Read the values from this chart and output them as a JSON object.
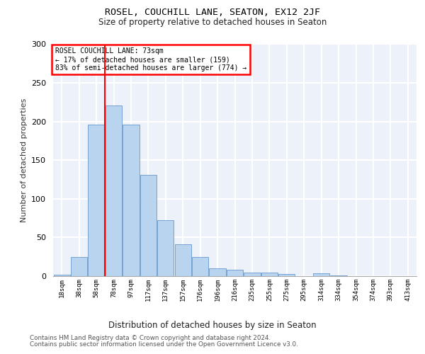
{
  "title1": "ROSEL, COUCHILL LANE, SEATON, EX12 2JF",
  "title2": "Size of property relative to detached houses in Seaton",
  "xlabel": "Distribution of detached houses by size in Seaton",
  "ylabel": "Number of detached properties",
  "footer1": "Contains HM Land Registry data © Crown copyright and database right 2024.",
  "footer2": "Contains public sector information licensed under the Open Government Licence v3.0.",
  "annotation_line1": "ROSEL COUCHILL LANE: 73sqm",
  "annotation_line2": "← 17% of detached houses are smaller (159)",
  "annotation_line3": "83% of semi-detached houses are larger (774) →",
  "bar_values": [
    2,
    25,
    196,
    221,
    196,
    131,
    72,
    41,
    25,
    10,
    8,
    5,
    5,
    3,
    0,
    4,
    1,
    0,
    0,
    0,
    0
  ],
  "x_labels": [
    "18sqm",
    "38sqm",
    "58sqm",
    "78sqm",
    "97sqm",
    "117sqm",
    "137sqm",
    "157sqm",
    "176sqm",
    "196sqm",
    "216sqm",
    "235sqm",
    "255sqm",
    "275sqm",
    "295sqm",
    "314sqm",
    "334sqm",
    "354sqm",
    "374sqm",
    "393sqm",
    "413sqm"
  ],
  "bar_color": "#b8d4ee",
  "bar_edge_color": "#6699cc",
  "red_line_x": 2.5,
  "background_color": "#edf2fa",
  "grid_color": "#ffffff",
  "ylim": [
    0,
    300
  ],
  "yticks": [
    0,
    50,
    100,
    150,
    200,
    250,
    300
  ]
}
